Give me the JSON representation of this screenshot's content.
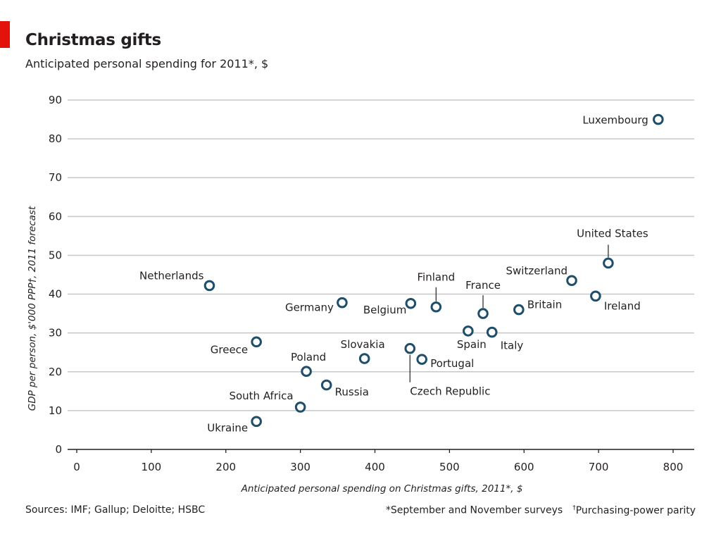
{
  "header": {
    "title": "Christmas gifts",
    "subtitle": "Anticipated personal spending for 2011*, $"
  },
  "footer": {
    "sources": "Sources: IMF; Gallup; Deloitte; HSBC",
    "note1": "*September and November surveys",
    "note2_mark": "†",
    "note2": "Purchasing-power parity"
  },
  "colors": {
    "accent": "#e3120b",
    "marker": "#1f4e6b",
    "grid": "#c8c8c8",
    "axis": "#231f20"
  },
  "chart_data": {
    "type": "scatter",
    "title": "Christmas gifts",
    "subtitle": "Anticipated personal spending for 2011*, $",
    "xlabel": "Anticipated personal spending on Christmas gifts, 2011*, $",
    "ylabel": "GDP per person, $'000 PPP†, 2011 forecast",
    "xlim": [
      0,
      800
    ],
    "ylim": [
      0,
      90
    ],
    "xticks": [
      0,
      100,
      200,
      300,
      400,
      500,
      600,
      700,
      800
    ],
    "yticks": [
      0,
      10,
      20,
      30,
      40,
      50,
      60,
      70,
      80,
      90
    ],
    "grid": "horizontal",
    "points": [
      {
        "label": "Luxembourg",
        "x": 780,
        "y": 85
      },
      {
        "label": "United States",
        "x": 713,
        "y": 48
      },
      {
        "label": "Switzerland",
        "x": 664,
        "y": 43.5
      },
      {
        "label": "Ireland",
        "x": 696,
        "y": 39.5
      },
      {
        "label": "Britain",
        "x": 593,
        "y": 36
      },
      {
        "label": "France",
        "x": 545,
        "y": 35
      },
      {
        "label": "Finland",
        "x": 482,
        "y": 36.7
      },
      {
        "label": "Belgium",
        "x": 448,
        "y": 37.6
      },
      {
        "label": "Germany",
        "x": 356,
        "y": 37.8
      },
      {
        "label": "Netherlands",
        "x": 178,
        "y": 42.2
      },
      {
        "label": "Spain",
        "x": 525,
        "y": 30.5
      },
      {
        "label": "Italy",
        "x": 557,
        "y": 30.2
      },
      {
        "label": "Czech Republic",
        "x": 447,
        "y": 26
      },
      {
        "label": "Portugal",
        "x": 463,
        "y": 23.2
      },
      {
        "label": "Slovakia",
        "x": 386,
        "y": 23.4
      },
      {
        "label": "Greece",
        "x": 241,
        "y": 27.7
      },
      {
        "label": "Poland",
        "x": 308,
        "y": 20.1
      },
      {
        "label": "Russia",
        "x": 335,
        "y": 16.6
      },
      {
        "label": "South Africa",
        "x": 300,
        "y": 10.9
      },
      {
        "label": "Ukraine",
        "x": 241,
        "y": 7.2
      }
    ]
  }
}
